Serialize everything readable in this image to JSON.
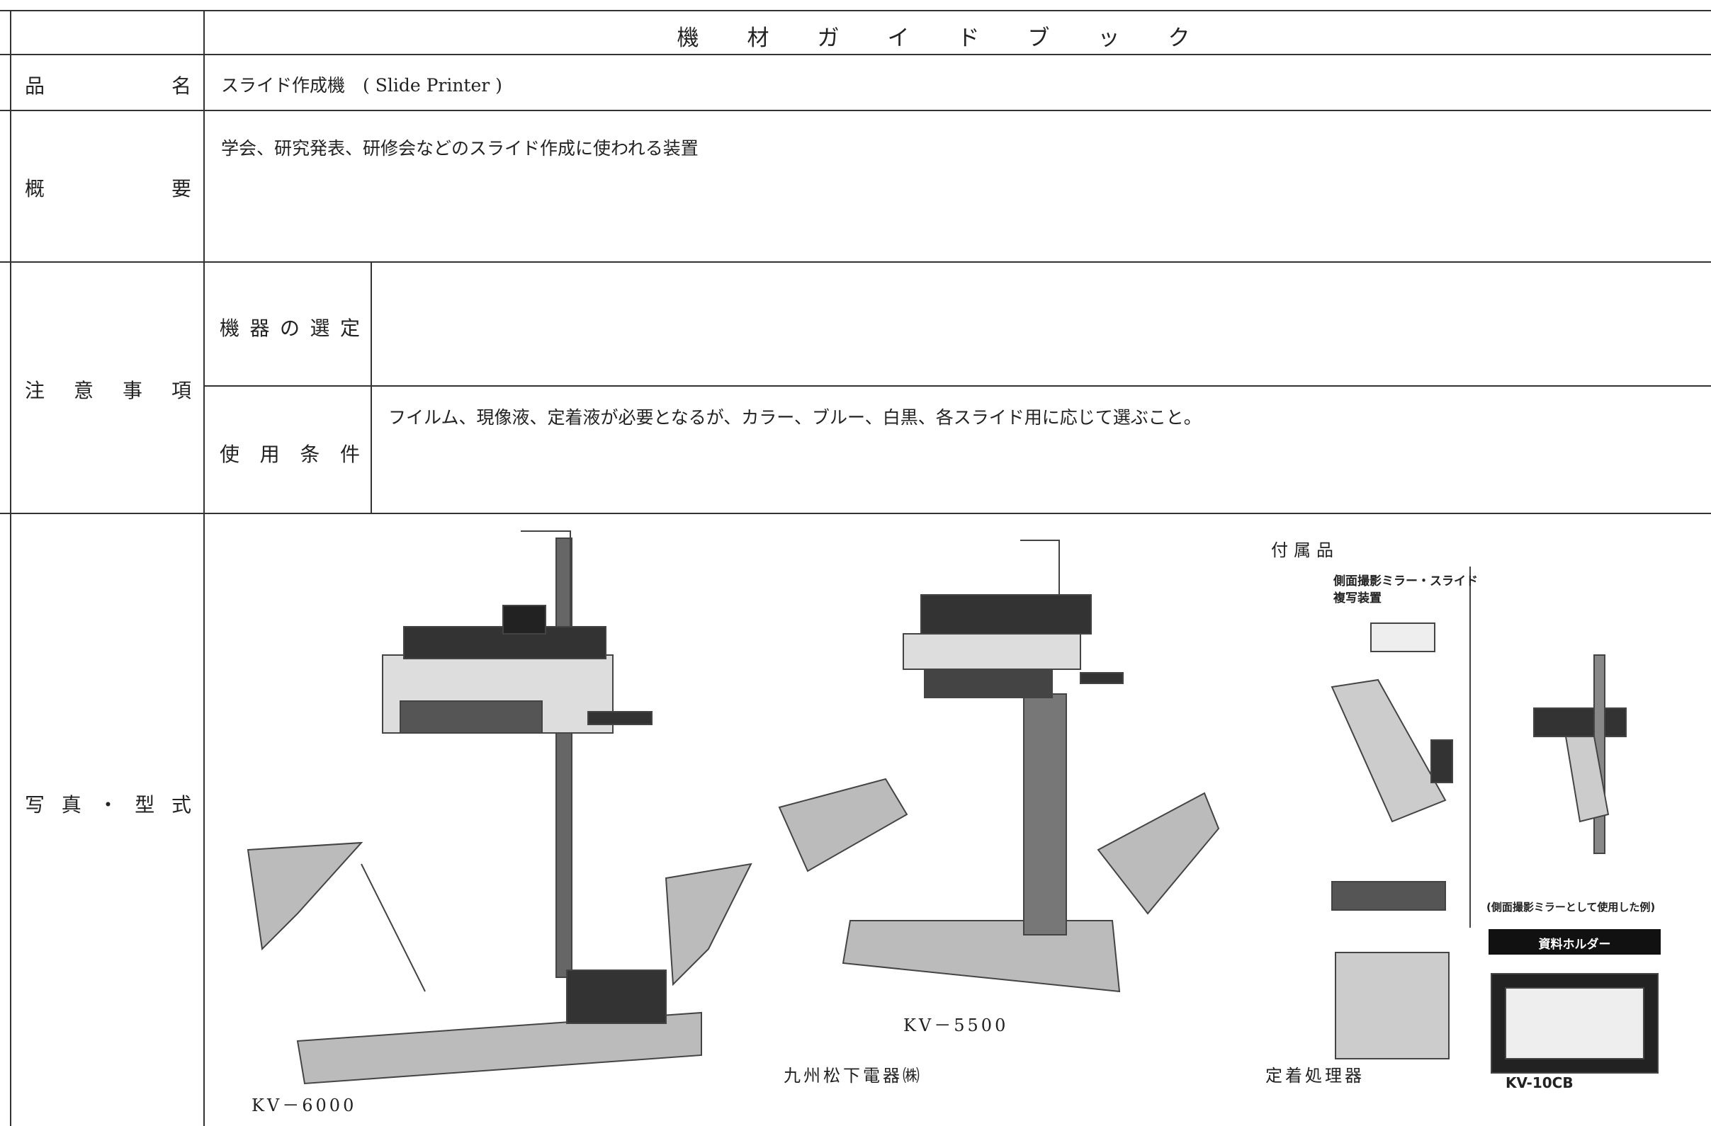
{
  "header": {
    "title": "機材ガイドブック"
  },
  "rows": {
    "product_name": {
      "label": "品名",
      "value": "スライド作成機　( Slide Printer )"
    },
    "overview": {
      "label": "概要",
      "value": "学会、研究発表、研修会などのスライド作成に使われる装置"
    },
    "notes": {
      "label": "注意事項",
      "selection": {
        "label": "機器の選定"
      },
      "conditions": {
        "label": "使用条件",
        "value": "フイルム、現像液、定着液が必要となるが、カラー、ブルー、白黒、各スライド用に応じて選ぶこと。"
      }
    },
    "photos": {
      "label": "写真・型式",
      "models": [
        "KV－6000",
        "KV－5500"
      ],
      "maker": "九州松下電器㈱",
      "accessories": {
        "title": "付属品",
        "mirror": [
          "側面撮影ミラー・スライド",
          "複写装置"
        ],
        "mirror_example": "(側面撮影ミラーとして使用した例)",
        "holder": "資料ホルダー",
        "holder_model": "KV-10CB",
        "fixer": "定着処理器"
      }
    }
  }
}
